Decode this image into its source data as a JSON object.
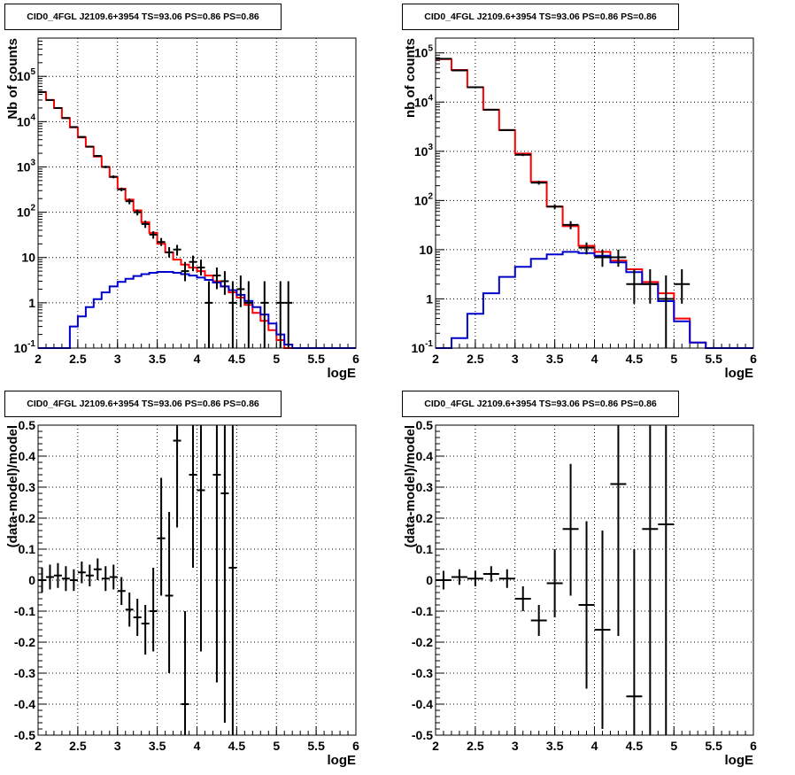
{
  "colors": {
    "data": "#000000",
    "total": "#ff0000",
    "component": "#0000cc",
    "grid": "#000000"
  },
  "chart_data": [
    {
      "type": "line",
      "title": "CID0_4FGL J2109.6+3954 TS=93.06 PS=0.86 PS=0.86",
      "xlabel": "logE",
      "ylabel": "Nb of counts",
      "log_y": true,
      "xlim": [
        2,
        6
      ],
      "ylim": [
        0.1,
        700000
      ],
      "xticks": [
        "2",
        "2.5",
        "3",
        "3.5",
        "4",
        "4.5",
        "5",
        "5.5",
        "6"
      ],
      "yticks": [
        "10^-1",
        "1",
        "10",
        "10^2",
        "10^3",
        "10^4",
        "10^5"
      ],
      "grid": true,
      "bin_edges": [
        2.0,
        2.1,
        2.2,
        2.3,
        2.4,
        2.5,
        2.6,
        2.7,
        2.8,
        2.9,
        3.0,
        3.1,
        3.2,
        3.3,
        3.4,
        3.5,
        3.6,
        3.7,
        3.8,
        3.9,
        4.0,
        4.1,
        4.2,
        4.3,
        4.4,
        4.5,
        4.6,
        4.7,
        4.8,
        4.9,
        5.0,
        5.1,
        5.2,
        5.3,
        5.4,
        5.5,
        5.6,
        5.7,
        5.8,
        5.9,
        6.0
      ],
      "series": [
        {
          "role": "total",
          "style": "step",
          "values": [
            45000,
            30000,
            20000,
            12000,
            7500,
            4500,
            2800,
            1700,
            1000,
            600,
            330,
            190,
            110,
            60,
            35,
            20,
            13,
            9,
            7,
            6,
            5,
            4,
            3,
            2.3,
            1.7,
            1.3,
            0.9,
            0.6,
            0.4,
            0.25,
            0.15,
            0.1,
            0.1,
            0.1,
            0.1,
            0.1,
            0.1,
            0.1,
            0.1,
            0.1
          ]
        },
        {
          "role": "component",
          "style": "step",
          "values": [
            0.1,
            0.1,
            0.1,
            0.1,
            0.3,
            0.5,
            0.8,
            1.2,
            1.7,
            2.3,
            2.9,
            3.4,
            3.9,
            4.3,
            4.6,
            4.8,
            4.8,
            4.6,
            4.3,
            4.0,
            3.6,
            3.2,
            2.8,
            2.3,
            1.9,
            1.5,
            1.1,
            0.8,
            0.55,
            0.35,
            0.2,
            0.12,
            0.1,
            0.1,
            0.1,
            0.1,
            0.1,
            0.1,
            0.1,
            0.1
          ]
        }
      ],
      "points": [
        {
          "x": 2.05,
          "y": 45000,
          "ylo": 44600,
          "yhi": 45400
        },
        {
          "x": 2.15,
          "y": 30000,
          "ylo": 29700,
          "yhi": 30300
        },
        {
          "x": 2.25,
          "y": 20000,
          "ylo": 19700,
          "yhi": 20300
        },
        {
          "x": 2.35,
          "y": 12000,
          "ylo": 11800,
          "yhi": 12200
        },
        {
          "x": 2.45,
          "y": 7600,
          "ylo": 7400,
          "yhi": 7800
        },
        {
          "x": 2.55,
          "y": 4600,
          "ylo": 4450,
          "yhi": 4750
        },
        {
          "x": 2.65,
          "y": 2800,
          "ylo": 2700,
          "yhi": 2900
        },
        {
          "x": 2.75,
          "y": 1750,
          "ylo": 1670,
          "yhi": 1830
        },
        {
          "x": 2.85,
          "y": 1000,
          "ylo": 940,
          "yhi": 1060
        },
        {
          "x": 2.95,
          "y": 605,
          "ylo": 560,
          "yhi": 650
        },
        {
          "x": 3.05,
          "y": 320,
          "ylo": 290,
          "yhi": 350
        },
        {
          "x": 3.15,
          "y": 175,
          "ylo": 150,
          "yhi": 200
        },
        {
          "x": 3.25,
          "y": 100,
          "ylo": 85,
          "yhi": 115
        },
        {
          "x": 3.35,
          "y": 55,
          "ylo": 45,
          "yhi": 65
        },
        {
          "x": 3.45,
          "y": 32,
          "ylo": 26,
          "yhi": 38
        },
        {
          "x": 3.55,
          "y": 22,
          "ylo": 18,
          "yhi": 27
        },
        {
          "x": 3.65,
          "y": 13,
          "ylo": 10,
          "yhi": 17
        },
        {
          "x": 3.75,
          "y": 15,
          "ylo": 11,
          "yhi": 19
        },
        {
          "x": 3.85,
          "y": 5,
          "ylo": 3,
          "yhi": 8
        },
        {
          "x": 3.95,
          "y": 8,
          "ylo": 5,
          "yhi": 11
        },
        {
          "x": 4.05,
          "y": 6,
          "ylo": 4,
          "yhi": 9
        },
        {
          "x": 4.15,
          "y": 1,
          "ylo": 0.1,
          "yhi": 3
        },
        {
          "x": 4.25,
          "y": 4,
          "ylo": 2,
          "yhi": 6
        },
        {
          "x": 4.35,
          "y": 3,
          "ylo": 1.5,
          "yhi": 5
        },
        {
          "x": 4.45,
          "y": 1,
          "ylo": 0.1,
          "yhi": 3
        },
        {
          "x": 4.55,
          "y": 2,
          "ylo": 0.8,
          "yhi": 4
        },
        {
          "x": 4.65,
          "y": 1,
          "ylo": 0.1,
          "yhi": 3
        },
        {
          "x": 4.85,
          "y": 1,
          "ylo": 0.1,
          "yhi": 3
        },
        {
          "x": 5.05,
          "y": 1,
          "ylo": 0.1,
          "yhi": 3
        },
        {
          "x": 5.15,
          "y": 1,
          "ylo": 0.1,
          "yhi": 3
        }
      ]
    },
    {
      "type": "line",
      "title": "CID0_4FGL J2109.6+3954 TS=93.06 PS=0.86 PS=0.86",
      "xlabel": "logE",
      "ylabel": "nb of counts",
      "log_y": true,
      "xlim": [
        2,
        6
      ],
      "ylim": [
        0.1,
        200000
      ],
      "xticks": [
        "2",
        "2.5",
        "3",
        "3.5",
        "4",
        "4.5",
        "5",
        "5.5",
        "6"
      ],
      "yticks": [
        "10^-1",
        "1",
        "10",
        "10^2",
        "10^3",
        "10^4",
        "10^5"
      ],
      "grid": true,
      "bin_edges": [
        2.0,
        2.2,
        2.4,
        2.6,
        2.8,
        3.0,
        3.2,
        3.4,
        3.6,
        3.8,
        4.0,
        4.2,
        4.4,
        4.6,
        4.8,
        5.0,
        5.2,
        5.4,
        5.6,
        5.8,
        6.0
      ],
      "series": [
        {
          "role": "total",
          "style": "step",
          "values": [
            75000,
            45000,
            20000,
            7000,
            2700,
            900,
            240,
            75,
            30,
            12,
            9,
            6,
            4,
            2.2,
            1.3,
            0.4,
            0.13,
            0.1,
            0.1,
            0.1
          ]
        },
        {
          "role": "component",
          "style": "step",
          "values": [
            0.1,
            0.16,
            0.5,
            1.3,
            2.8,
            4.5,
            6.5,
            8,
            9,
            8.5,
            7.5,
            5.5,
            3.5,
            2.0,
            0.9,
            0.35,
            0.13,
            0.1,
            0.1,
            0.1
          ]
        }
      ],
      "points": [
        {
          "x": 2.1,
          "y": 76000,
          "ylo": 75500,
          "yhi": 76500
        },
        {
          "x": 2.3,
          "y": 44000,
          "ylo": 43600,
          "yhi": 44400
        },
        {
          "x": 2.5,
          "y": 20000,
          "ylo": 19700,
          "yhi": 20300
        },
        {
          "x": 2.7,
          "y": 7000,
          "ylo": 6850,
          "yhi": 7150
        },
        {
          "x": 2.9,
          "y": 2700,
          "ylo": 2600,
          "yhi": 2800
        },
        {
          "x": 3.1,
          "y": 850,
          "ylo": 800,
          "yhi": 900
        },
        {
          "x": 3.3,
          "y": 230,
          "ylo": 210,
          "yhi": 250
        },
        {
          "x": 3.5,
          "y": 75,
          "ylo": 66,
          "yhi": 84
        },
        {
          "x": 3.7,
          "y": 32,
          "ylo": 26,
          "yhi": 38
        },
        {
          "x": 3.9,
          "y": 11,
          "ylo": 8,
          "yhi": 14
        },
        {
          "x": 4.1,
          "y": 7,
          "ylo": 4.5,
          "yhi": 10
        },
        {
          "x": 4.3,
          "y": 7,
          "ylo": 4.5,
          "yhi": 10
        },
        {
          "x": 4.5,
          "y": 2,
          "ylo": 0.8,
          "yhi": 4
        },
        {
          "x": 4.7,
          "y": 2,
          "ylo": 0.8,
          "yhi": 4
        },
        {
          "x": 4.9,
          "y": 1,
          "ylo": 0.1,
          "yhi": 3
        },
        {
          "x": 5.1,
          "y": 2,
          "ylo": 0.8,
          "yhi": 4
        }
      ]
    },
    {
      "type": "scatter",
      "title": "CID0_4FGL J2109.6+3954 TS=93.06 PS=0.86 PS=0.86",
      "xlabel": "logE",
      "ylabel": "(data-model)/model",
      "log_y": false,
      "xlim": [
        2,
        6
      ],
      "ylim": [
        -0.5,
        0.5
      ],
      "xticks": [
        "2",
        "2.5",
        "3",
        "3.5",
        "4",
        "4.5",
        "5",
        "5.5",
        "6"
      ],
      "yticks": [
        "-0.5",
        "-0.4",
        "-0.3",
        "-0.2",
        "-0.1",
        "0",
        "0.1",
        "0.2",
        "0.3",
        "0.4",
        "0.5"
      ],
      "grid": true,
      "halfwidth": 0.05,
      "points": [
        {
          "x": 2.05,
          "y": 0.0,
          "ylo": -0.04,
          "yhi": 0.04
        },
        {
          "x": 2.15,
          "y": 0.01,
          "ylo": -0.03,
          "yhi": 0.05
        },
        {
          "x": 2.25,
          "y": 0.015,
          "ylo": -0.025,
          "yhi": 0.055
        },
        {
          "x": 2.35,
          "y": 0.005,
          "ylo": -0.035,
          "yhi": 0.045
        },
        {
          "x": 2.45,
          "y": 0.0,
          "ylo": -0.035,
          "yhi": 0.035
        },
        {
          "x": 2.55,
          "y": 0.025,
          "ylo": -0.01,
          "yhi": 0.06
        },
        {
          "x": 2.65,
          "y": 0.015,
          "ylo": -0.02,
          "yhi": 0.05
        },
        {
          "x": 2.75,
          "y": 0.035,
          "ylo": 0.0,
          "yhi": 0.07
        },
        {
          "x": 2.85,
          "y": 0.005,
          "ylo": -0.035,
          "yhi": 0.045
        },
        {
          "x": 2.95,
          "y": 0.01,
          "ylo": -0.03,
          "yhi": 0.05
        },
        {
          "x": 3.05,
          "y": -0.035,
          "ylo": -0.08,
          "yhi": 0.01
        },
        {
          "x": 3.15,
          "y": -0.095,
          "ylo": -0.15,
          "yhi": -0.04
        },
        {
          "x": 3.25,
          "y": -0.12,
          "ylo": -0.18,
          "yhi": -0.06
        },
        {
          "x": 3.35,
          "y": -0.14,
          "ylo": -0.24,
          "yhi": -0.08
        },
        {
          "x": 3.45,
          "y": -0.1,
          "ylo": -0.23,
          "yhi": 0.04
        },
        {
          "x": 3.55,
          "y": 0.135,
          "ylo": -0.05,
          "yhi": 0.33
        },
        {
          "x": 3.65,
          "y": -0.05,
          "ylo": -0.3,
          "yhi": 0.22
        },
        {
          "x": 3.75,
          "y": 0.45,
          "ylo": 0.17,
          "yhi": 0.5
        },
        {
          "x": 3.85,
          "y": -0.4,
          "ylo": -0.5,
          "yhi": -0.1
        },
        {
          "x": 3.95,
          "y": 0.34,
          "ylo": 0.04,
          "yhi": 0.5
        },
        {
          "x": 4.05,
          "y": 0.29,
          "ylo": -0.23,
          "yhi": 0.5
        },
        {
          "x": 4.25,
          "y": 0.34,
          "ylo": -0.33,
          "yhi": 0.5
        },
        {
          "x": 4.35,
          "y": 0.28,
          "ylo": -0.46,
          "yhi": 0.5
        },
        {
          "x": 4.45,
          "y": 0.04,
          "ylo": -0.5,
          "yhi": 0.5
        }
      ]
    },
    {
      "type": "scatter",
      "title": "CID0_4FGL J2109.6+3954 TS=93.06 PS=0.86 PS=0.86",
      "xlabel": "logE",
      "ylabel": "(data-model)/model",
      "log_y": false,
      "xlim": [
        2,
        6
      ],
      "ylim": [
        -0.5,
        0.5
      ],
      "xticks": [
        "2",
        "2.5",
        "3",
        "3.5",
        "4",
        "4.5",
        "5",
        "5.5",
        "6"
      ],
      "yticks": [
        "-0.5",
        "-0.4",
        "-0.3",
        "-0.2",
        "-0.1",
        "0",
        "0.1",
        "0.2",
        "0.3",
        "0.4",
        "0.5"
      ],
      "grid": true,
      "halfwidth": 0.1,
      "points": [
        {
          "x": 2.1,
          "y": 0.0,
          "ylo": -0.03,
          "yhi": 0.03
        },
        {
          "x": 2.3,
          "y": 0.01,
          "ylo": -0.015,
          "yhi": 0.035
        },
        {
          "x": 2.5,
          "y": 0.005,
          "ylo": -0.02,
          "yhi": 0.03
        },
        {
          "x": 2.7,
          "y": 0.02,
          "ylo": -0.005,
          "yhi": 0.045
        },
        {
          "x": 2.9,
          "y": 0.005,
          "ylo": -0.025,
          "yhi": 0.035
        },
        {
          "x": 3.1,
          "y": -0.06,
          "ylo": -0.1,
          "yhi": -0.02
        },
        {
          "x": 3.3,
          "y": -0.13,
          "ylo": -0.18,
          "yhi": -0.08
        },
        {
          "x": 3.5,
          "y": -0.01,
          "ylo": -0.12,
          "yhi": 0.1
        },
        {
          "x": 3.7,
          "y": 0.165,
          "ylo": -0.05,
          "yhi": 0.375
        },
        {
          "x": 3.9,
          "y": -0.08,
          "ylo": -0.35,
          "yhi": 0.19
        },
        {
          "x": 4.1,
          "y": -0.16,
          "ylo": -0.48,
          "yhi": 0.16
        },
        {
          "x": 4.3,
          "y": 0.31,
          "ylo": -0.18,
          "yhi": 0.5
        },
        {
          "x": 4.5,
          "y": -0.375,
          "ylo": -0.5,
          "yhi": 0.1
        },
        {
          "x": 4.7,
          "y": 0.165,
          "ylo": -0.5,
          "yhi": 0.5
        },
        {
          "x": 4.9,
          "y": 0.18,
          "ylo": -0.5,
          "yhi": 0.5
        }
      ]
    }
  ]
}
